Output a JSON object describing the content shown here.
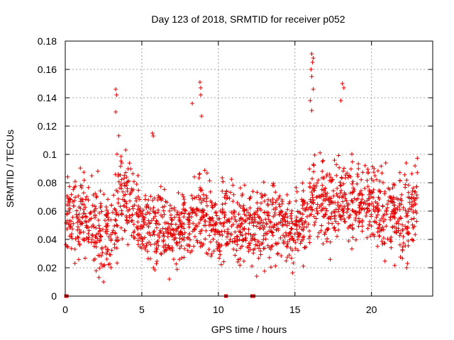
{
  "chart_data": {
    "type": "scatter",
    "title": "Day 123 of 2018, SRMTID for receiver p052",
    "xlabel": "GPS time / hours",
    "ylabel": "SRMTID / TECUs",
    "xlim": [
      0,
      24
    ],
    "ylim": [
      0,
      0.18
    ],
    "grid": true,
    "marker": "+",
    "color": "#e00000",
    "x_ticks": [
      0,
      5,
      10,
      15,
      20
    ],
    "x_tick_labels": [
      "0",
      "5",
      "10",
      "15",
      "20"
    ],
    "y_ticks": [
      0,
      0.02,
      0.04,
      0.06,
      0.08,
      0.1,
      0.12,
      0.14,
      0.16,
      0.18
    ],
    "y_tick_labels": [
      "0",
      "0.02",
      "0.04",
      "0.06",
      "0.08",
      "0.1",
      "0.12",
      "0.14",
      "0.16",
      "0.18"
    ],
    "zero_points_x": [
      0.05,
      0.1,
      10.5,
      12.2,
      12.3
    ],
    "notable_points": [
      {
        "x": 3.3,
        "y": 0.146
      },
      {
        "x": 3.35,
        "y": 0.142
      },
      {
        "x": 3.3,
        "y": 0.13
      },
      {
        "x": 8.8,
        "y": 0.151
      },
      {
        "x": 8.85,
        "y": 0.147
      },
      {
        "x": 8.85,
        "y": 0.142
      },
      {
        "x": 8.3,
        "y": 0.136
      },
      {
        "x": 8.9,
        "y": 0.127
      },
      {
        "x": 16.1,
        "y": 0.171
      },
      {
        "x": 16.2,
        "y": 0.168
      },
      {
        "x": 16.15,
        "y": 0.165
      },
      {
        "x": 16.05,
        "y": 0.16
      },
      {
        "x": 16.1,
        "y": 0.155
      },
      {
        "x": 16.2,
        "y": 0.146
      },
      {
        "x": 16.0,
        "y": 0.138
      },
      {
        "x": 16.1,
        "y": 0.131
      },
      {
        "x": 18.1,
        "y": 0.15
      },
      {
        "x": 18.2,
        "y": 0.147
      },
      {
        "x": 18.0,
        "y": 0.138
      },
      {
        "x": 5.7,
        "y": 0.115
      },
      {
        "x": 5.75,
        "y": 0.113
      },
      {
        "x": 2.5,
        "y": 0.01
      },
      {
        "x": 6.8,
        "y": 0.012
      },
      {
        "x": 12.5,
        "y": 0.014
      },
      {
        "x": 22.3,
        "y": 0.02
      },
      {
        "x": 22.35,
        "y": 0.023
      }
    ],
    "density_profile": {
      "hours": [
        0.0,
        0.5,
        1.0,
        1.5,
        2.0,
        2.5,
        3.0,
        3.5,
        4.0,
        4.5,
        5.0,
        5.5,
        6.0,
        6.5,
        7.0,
        7.5,
        8.0,
        8.5,
        9.0,
        9.5,
        10.0,
        10.5,
        11.0,
        11.5,
        12.0,
        12.5,
        13.0,
        13.5,
        14.0,
        14.5,
        15.0,
        15.5,
        16.0,
        16.5,
        17.0,
        17.5,
        18.0,
        18.5,
        19.0,
        19.5,
        20.0,
        20.5,
        21.0,
        21.5,
        22.0,
        22.5
      ],
      "mean": [
        0.055,
        0.055,
        0.058,
        0.055,
        0.048,
        0.042,
        0.045,
        0.075,
        0.07,
        0.06,
        0.052,
        0.048,
        0.045,
        0.048,
        0.042,
        0.045,
        0.05,
        0.058,
        0.06,
        0.05,
        0.048,
        0.055,
        0.05,
        0.05,
        0.048,
        0.046,
        0.05,
        0.052,
        0.055,
        0.05,
        0.045,
        0.05,
        0.065,
        0.07,
        0.07,
        0.068,
        0.07,
        0.068,
        0.065,
        0.065,
        0.063,
        0.06,
        0.058,
        0.06,
        0.055,
        0.065
      ],
      "spread": [
        0.018,
        0.02,
        0.02,
        0.02,
        0.02,
        0.02,
        0.022,
        0.022,
        0.02,
        0.018,
        0.018,
        0.018,
        0.018,
        0.018,
        0.018,
        0.018,
        0.018,
        0.02,
        0.02,
        0.018,
        0.018,
        0.02,
        0.018,
        0.018,
        0.018,
        0.018,
        0.018,
        0.018,
        0.018,
        0.018,
        0.016,
        0.018,
        0.022,
        0.02,
        0.02,
        0.02,
        0.02,
        0.02,
        0.02,
        0.02,
        0.02,
        0.02,
        0.02,
        0.02,
        0.02,
        0.02
      ],
      "points_per_half_hour": 38
    }
  }
}
